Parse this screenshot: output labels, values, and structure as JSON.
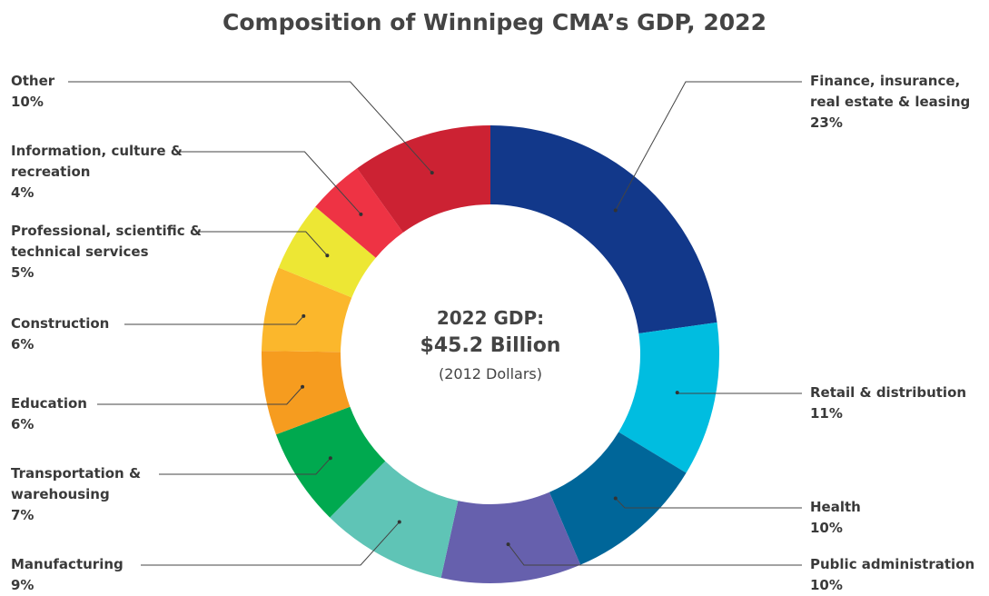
{
  "chart_data": {
    "type": "donut",
    "title": "Composition of Winnipeg CMA’s GDP, 2022",
    "center_text": [
      "2022 GDP:",
      "$45.2 Billion",
      "(2012 Dollars)"
    ],
    "categories": [
      "Finance, insurance, real estate & leasing",
      "Retail & distribution",
      "Health",
      "Public administration",
      "Manufacturing",
      "Transportation & warehousing",
      "Education",
      "Construction",
      "Professional, scientific & technical services",
      "Information, culture & recreation",
      "Other"
    ],
    "values": [
      23,
      11,
      10,
      10,
      9,
      7,
      6,
      6,
      5,
      4,
      10
    ],
    "value_labels": [
      "23%",
      "11%",
      "10%",
      "10%",
      "9%",
      "7%",
      "6%",
      "6%",
      "5%",
      "4%",
      "10%"
    ],
    "colors": [
      "#12388a",
      "#00bde0",
      "#006699",
      "#6660ad",
      "#5fc4b6",
      "#00a94f",
      "#f69c1f",
      "#fbb72c",
      "#ede734",
      "#ee3344",
      "#cc2233"
    ]
  }
}
